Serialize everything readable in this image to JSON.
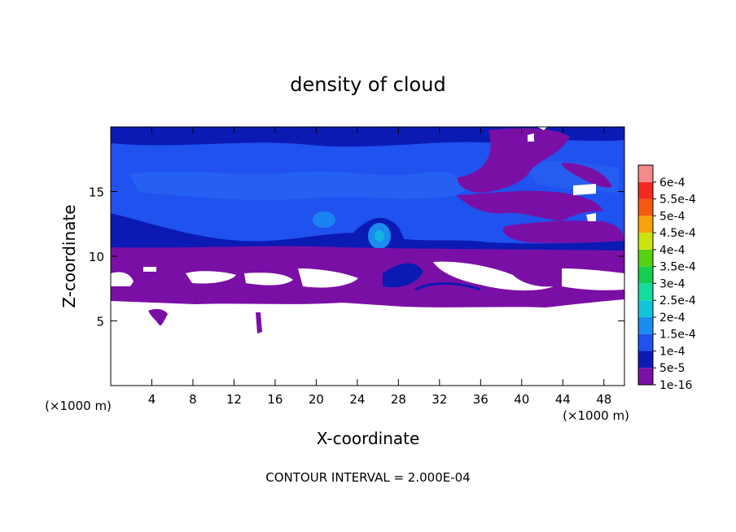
{
  "chart_data": {
    "type": "heatmap",
    "title": "density of cloud",
    "xlabel": "X-coordinate",
    "ylabel": "Z-coordinate",
    "x_unit": "(×1000 m)",
    "z_unit": "(×1000 m)",
    "xlim": [
      0,
      50
    ],
    "ylim": [
      0,
      20
    ],
    "x_ticks": [
      4,
      8,
      12,
      16,
      20,
      24,
      28,
      32,
      36,
      40,
      44,
      48
    ],
    "y_ticks": [
      5,
      10,
      15
    ],
    "footer": "CONTOUR INTERVAL = 2.000E-04",
    "legend": {
      "placement": "right",
      "levels": [
        {
          "label": "1e-16",
          "color": "#7a0fa6"
        },
        {
          "label": "5e-5",
          "color": "#0c1ab4"
        },
        {
          "label": "1e-4",
          "color": "#1f52ee"
        },
        {
          "label": "1.5e-4",
          "color": "#1a8cf2"
        },
        {
          "label": "2e-4",
          "color": "#12c4da"
        },
        {
          "label": "2.5e-4",
          "color": "#14dc9e"
        },
        {
          "label": "3e-4",
          "color": "#14cf4e"
        },
        {
          "label": "3.5e-4",
          "color": "#54d214"
        },
        {
          "label": "4e-4",
          "color": "#cbe40e"
        },
        {
          "label": "4.5e-4",
          "color": "#f6a20a"
        },
        {
          "label": "5e-4",
          "color": "#f65a10"
        },
        {
          "label": "5.5e-4",
          "color": "#f22a22"
        },
        {
          "label": "6e-4",
          "color": "#f48a8a"
        }
      ]
    }
  }
}
